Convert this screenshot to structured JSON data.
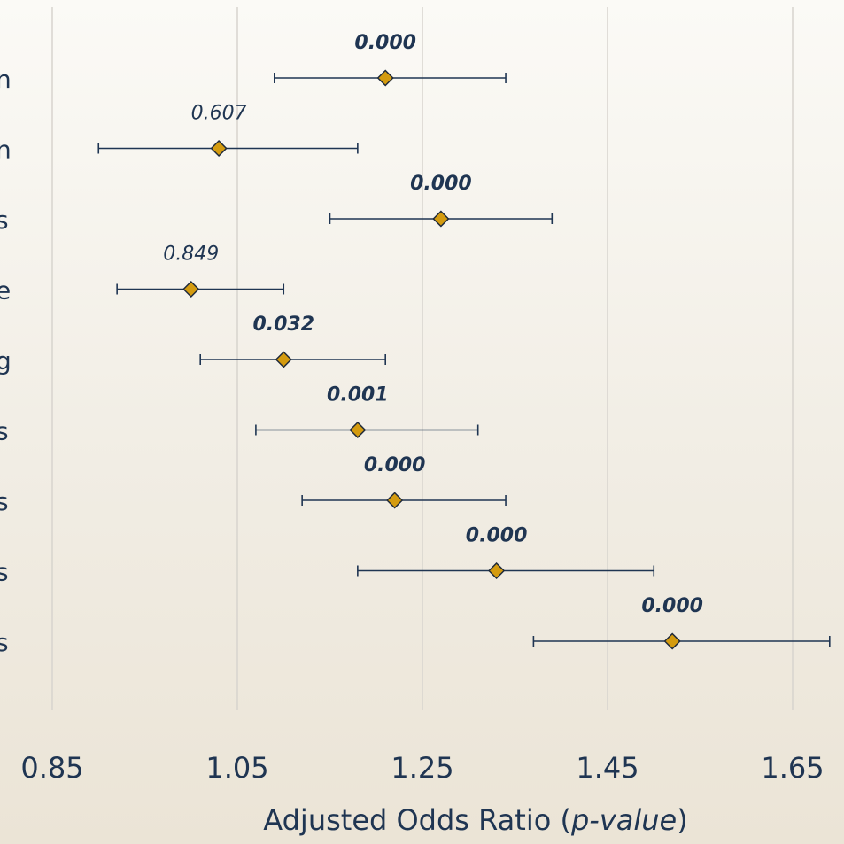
{
  "chart_data": {
    "type": "scatter",
    "subtype": "forest-plot",
    "title": "",
    "xlabel_parts": [
      "Adjusted Odds Ratio (",
      "p-value",
      ")"
    ],
    "xlim": [
      0.85,
      1.65
    ],
    "xticks": [
      "0.85",
      "1.05",
      "1.25",
      "1.45",
      "1.65"
    ],
    "grid": true,
    "category_labels_partial": [
      "n",
      "n",
      "s",
      "e",
      "g",
      "s",
      "s",
      "s",
      "s"
    ],
    "rows": [
      {
        "or": 1.21,
        "low": 1.09,
        "high": 1.34,
        "p": "0.000",
        "significant": true
      },
      {
        "or": 1.03,
        "low": 0.9,
        "high": 1.18,
        "p": "0.607",
        "significant": false
      },
      {
        "or": 1.27,
        "low": 1.15,
        "high": 1.39,
        "p": "0.000",
        "significant": true
      },
      {
        "or": 1.0,
        "low": 0.92,
        "high": 1.1,
        "p": "0.849",
        "significant": false
      },
      {
        "or": 1.1,
        "low": 1.01,
        "high": 1.21,
        "p": "0.032",
        "significant": true
      },
      {
        "or": 1.18,
        "low": 1.07,
        "high": 1.31,
        "p": "0.001",
        "significant": true
      },
      {
        "or": 1.22,
        "low": 1.12,
        "high": 1.34,
        "p": "0.000",
        "significant": true
      },
      {
        "or": 1.33,
        "low": 1.18,
        "high": 1.5,
        "p": "0.000",
        "significant": true
      },
      {
        "or": 1.52,
        "low": 1.37,
        "high": 1.69,
        "p": "0.000",
        "significant": true
      }
    ]
  },
  "colors": {
    "marker": "#d49b0f",
    "text": "#1f3552",
    "grid": "#d7d4ce"
  }
}
